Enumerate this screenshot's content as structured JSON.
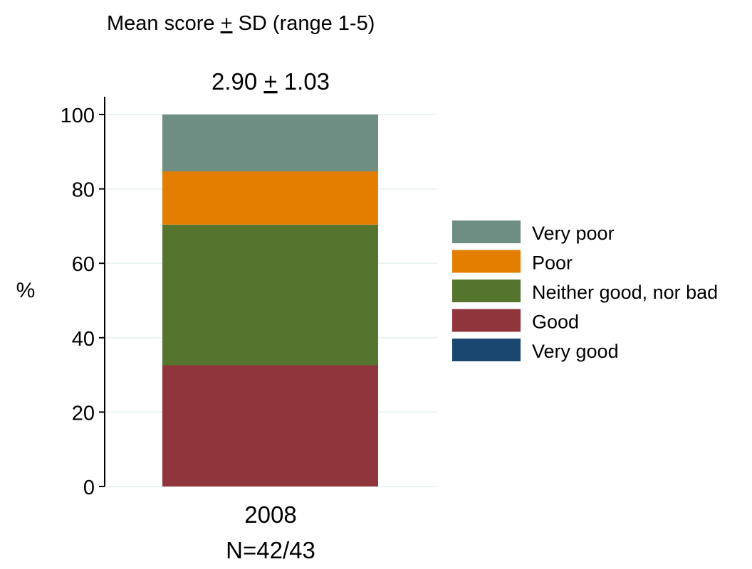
{
  "chart_data": {
    "type": "bar",
    "stacked": true,
    "title": {
      "parts": [
        "Mean score ",
        "+",
        " SD (range 1-5)"
      ]
    },
    "bar_annotation": {
      "parts": [
        "2.90 ",
        "+",
        " 1.03"
      ]
    },
    "ylabel": "%",
    "ylim": [
      0,
      100
    ],
    "yticks": [
      "0",
      "20",
      "40",
      "60",
      "80",
      "100"
    ],
    "categories": [
      "2008"
    ],
    "sample_label": "N=42/43",
    "grid": true,
    "legend_position": "right",
    "series": [
      {
        "name": "Very good",
        "color": "#1a476f",
        "values": [
          0.0
        ]
      },
      {
        "name": "Good",
        "color": "#90353b",
        "values": [
          32.6
        ]
      },
      {
        "name": "Neither good, nor bad",
        "color": "#55752f",
        "values": [
          37.8
        ]
      },
      {
        "name": "Poor",
        "color": "#e37e00",
        "values": [
          14.3
        ]
      },
      {
        "name": "Very poor",
        "color": "#6e8e84",
        "values": [
          15.3
        ]
      }
    ]
  }
}
